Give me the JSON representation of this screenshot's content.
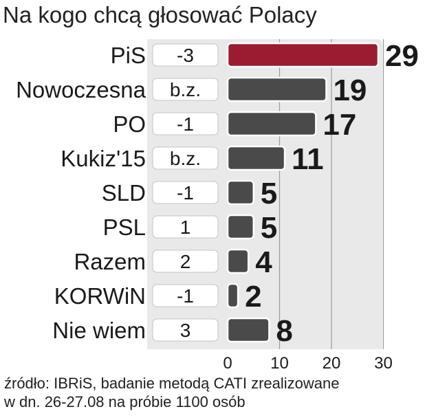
{
  "title": "Na kogo chcą głosować Polacy",
  "source_line1": "źródło: IBRiS, badanie metodą CATI zrealizowane",
  "source_line2": "w dn. 26-27.08 na próbie 1100 osób",
  "colors": {
    "highlight": "#9b1b30",
    "bar": "#4a4a4a",
    "panel": "#e9e9e9",
    "grid": "#9a9a9a"
  },
  "chart_data": {
    "type": "bar",
    "orientation": "horizontal",
    "categories": [
      "PiS",
      "Nowoczesna",
      "PO",
      "Kukiz'15",
      "SLD",
      "PSL",
      "Razem",
      "KORWiN",
      "Nie wiem"
    ],
    "values": [
      29,
      19,
      17,
      11,
      5,
      5,
      4,
      2,
      8
    ],
    "change_labels": [
      "-3",
      "b.z.",
      "-1",
      "b.z.",
      "-1",
      "1",
      "2",
      "-1",
      "3"
    ],
    "highlight_category": "PiS",
    "xlim": [
      0,
      30
    ],
    "xticks": [
      "0",
      "10",
      "20",
      "30"
    ],
    "grid": true
  }
}
